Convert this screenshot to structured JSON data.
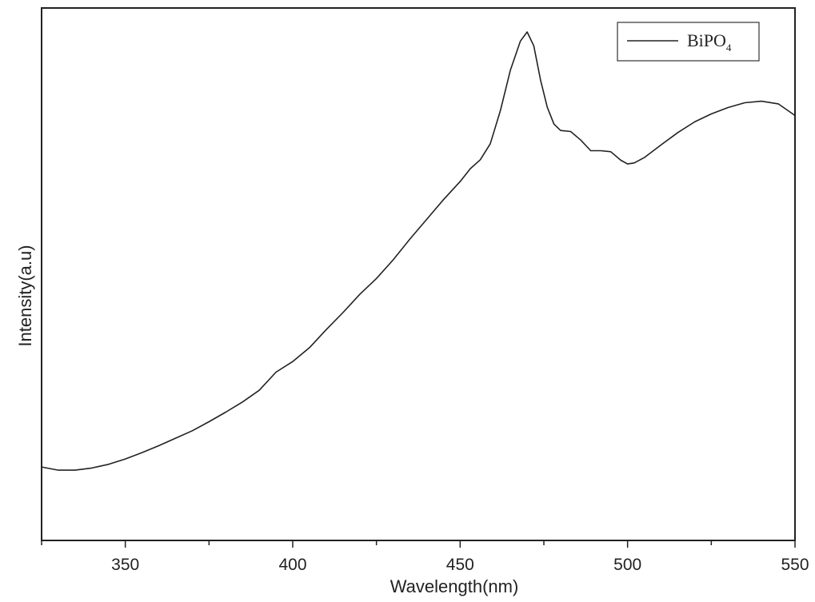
{
  "chart_data": {
    "type": "line",
    "xlabel": "Wavelength(nm)",
    "ylabel": "Intensity(a.u)",
    "xlim": [
      325,
      550
    ],
    "ylim": [
      0,
      100
    ],
    "x_ticks": [
      350,
      400,
      450,
      500,
      550
    ],
    "y_ticks_shown": false,
    "grid": false,
    "legend_position": "top-right",
    "series": [
      {
        "name": "BiPO",
        "name_subscript": "4",
        "color": "#222222",
        "x": [
          325,
          330,
          335,
          340,
          345,
          350,
          355,
          360,
          365,
          370,
          375,
          380,
          385,
          390,
          395,
          400,
          405,
          410,
          415,
          420,
          425,
          430,
          435,
          440,
          445,
          450,
          453,
          456,
          459,
          462,
          465,
          468,
          470,
          472,
          474,
          476,
          478,
          480,
          483,
          486,
          489,
          492,
          495,
          498,
          500,
          502,
          505,
          510,
          515,
          520,
          525,
          530,
          535,
          540,
          545,
          550
        ],
        "y": [
          13.8,
          13.2,
          13.2,
          13.6,
          14.3,
          15.3,
          16.5,
          17.8,
          19.2,
          20.6,
          22.3,
          24.1,
          26.0,
          28.2,
          31.6,
          33.6,
          36.2,
          39.6,
          42.8,
          46.2,
          49.2,
          52.7,
          56.6,
          60.3,
          64.0,
          67.4,
          69.8,
          71.5,
          74.5,
          80.7,
          88.3,
          93.8,
          95.5,
          92.9,
          86.5,
          81.4,
          78.2,
          77.0,
          76.8,
          75.2,
          73.2,
          73.2,
          73.0,
          71.4,
          70.7,
          70.9,
          71.9,
          74.3,
          76.6,
          78.6,
          80.1,
          81.3,
          82.2,
          82.5,
          82.0,
          79.8
        ]
      }
    ]
  }
}
